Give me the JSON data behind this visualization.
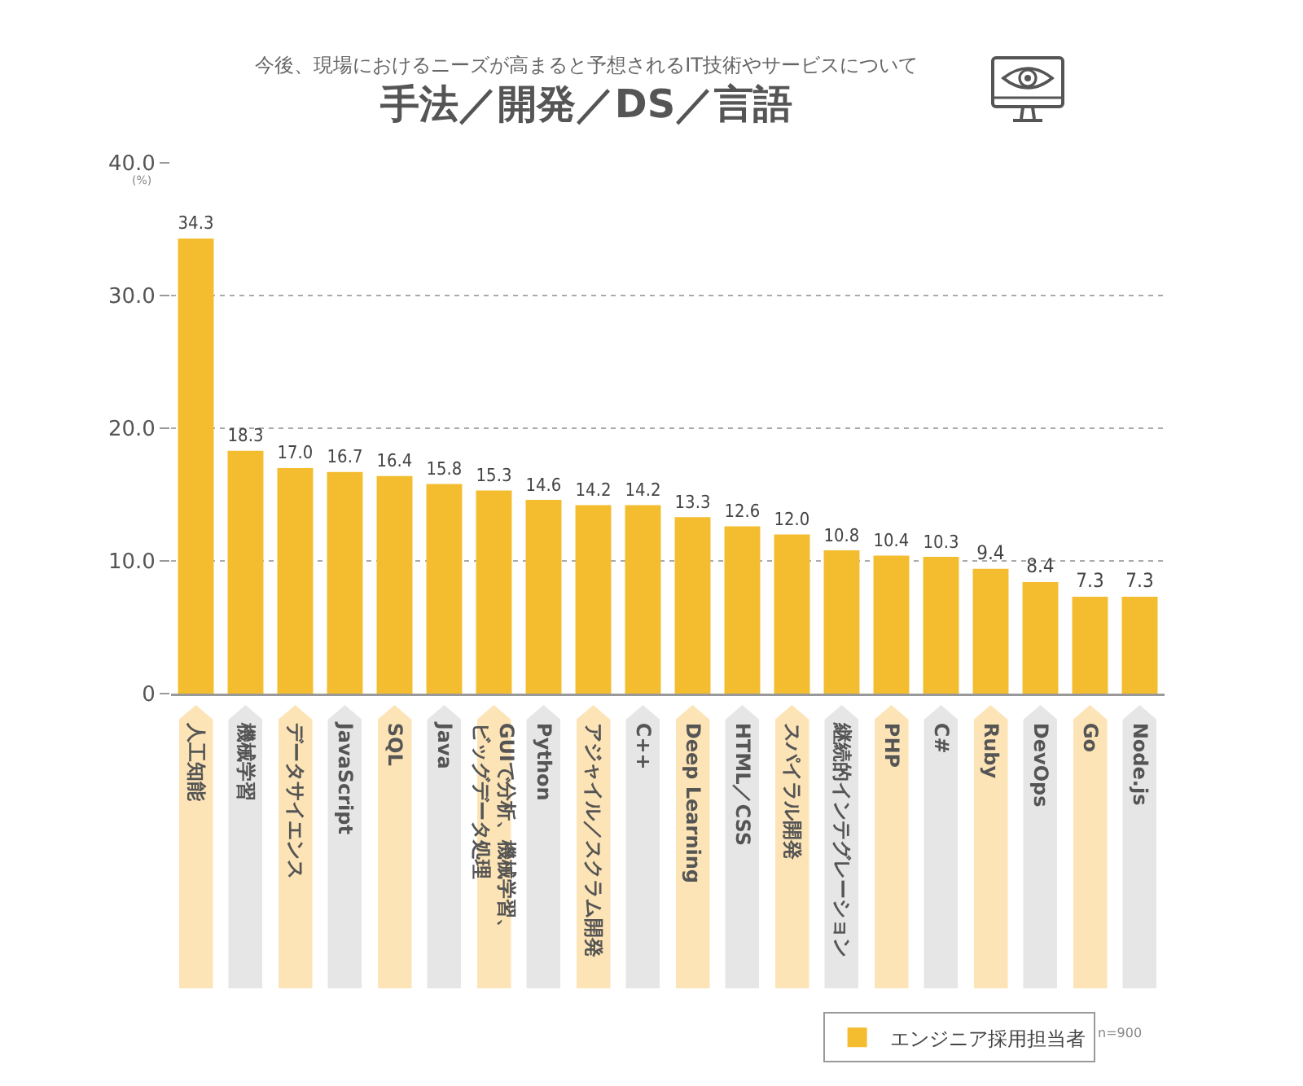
{
  "chart_data": {
    "type": "bar",
    "title": "手法／開発／DS／言語",
    "subtitle": "今後、現場におけるニーズが高まると予想されるIT技術やサービスについて",
    "categories": [
      "人工知能",
      "機械学習",
      "データサイエンス",
      "JavaScript",
      "SQL",
      "Java",
      "GUIで分析、機械学習、ビッグデータ処理",
      "Python",
      "アジャイル／スクラム開発",
      "C++",
      "Deep Learning",
      "HTML／CSS",
      "スパイラル開発",
      "継続的インテグレーション",
      "PHP",
      "C#",
      "Ruby",
      "DevOps",
      "Go",
      "Node.js"
    ],
    "series": [
      {
        "name": "エンジニア採用担当者",
        "color": "#f3bd2f",
        "values": [
          34.3,
          18.3,
          17.0,
          16.7,
          16.4,
          15.8,
          15.3,
          14.6,
          14.2,
          14.2,
          13.3,
          12.6,
          12.0,
          10.8,
          10.4,
          10.3,
          9.4,
          8.4,
          7.3,
          7.3
        ]
      }
    ],
    "value_labels": [
      "34.3",
      "18.3",
      "17.0",
      "16.7",
      "16.4",
      "15.8",
      "15.3",
      "14.6",
      "14.2",
      "14.2",
      "13.3",
      "12.6",
      "12.0",
      "10.8",
      "10.4",
      "10.3",
      "9.4",
      "8.4",
      "7.3",
      "7.3"
    ],
    "ylim": [
      0,
      40
    ],
    "yticks": [
      0,
      {
        "value": 10,
        "label": "10.0"
      },
      {
        "value": 20,
        "label": "20.0"
      },
      {
        "value": 30,
        "label": "30.0"
      },
      {
        "value": 40,
        "label": "40.0"
      }
    ],
    "grid": "y",
    "legend": "bottom right",
    "annotations": [
      "(%)",
      "n=900"
    ]
  }
}
